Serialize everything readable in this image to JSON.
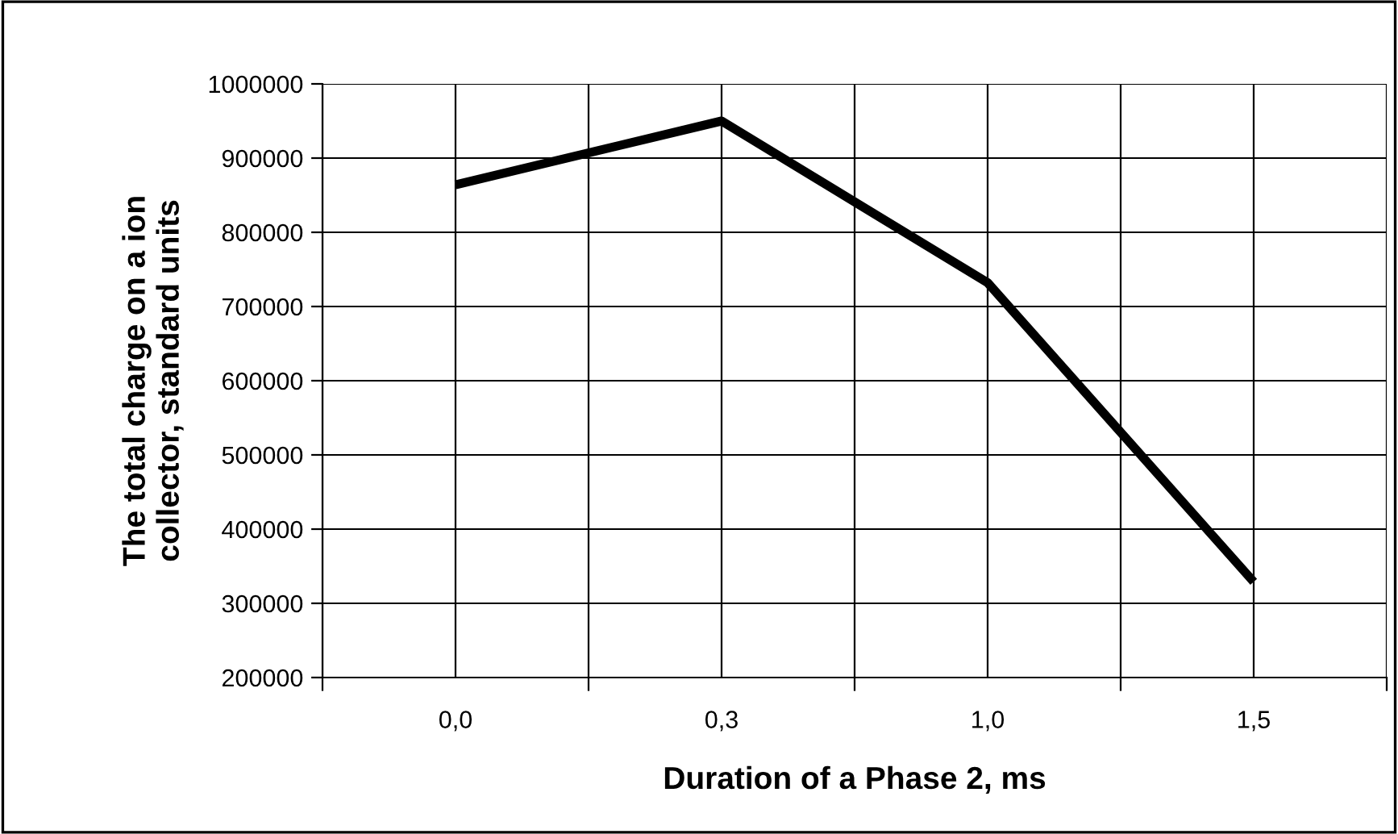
{
  "chart_data": {
    "type": "line",
    "xlabel": "Duration of a Phase 2, ms",
    "ylabel": "The total charge on a ion\ncollector, standard units",
    "categories": [
      "0,0",
      "0,3",
      "1,0",
      "1,5"
    ],
    "series": [
      {
        "color": "#000000",
        "values": [
          864000,
          950000,
          732000,
          329000
        ]
      }
    ],
    "ylim": [
      200000,
      1000000
    ],
    "yticks": [
      200000,
      300000,
      400000,
      500000,
      600000,
      700000,
      800000,
      900000,
      1000000
    ],
    "grid": true,
    "legend": false,
    "marker": "none",
    "line_style": "solid"
  }
}
